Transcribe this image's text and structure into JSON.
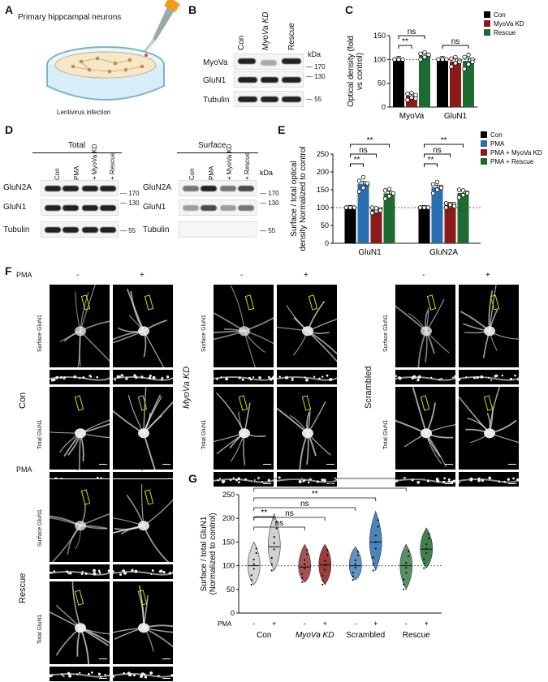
{
  "panels": {
    "A": {
      "letter": "A",
      "title": "Primary  hippcampal neurons",
      "caption": "Lentivirus infection"
    },
    "B": {
      "letter": "B",
      "lanes": [
        "Con",
        "MyoVa KD",
        "Rescue"
      ],
      "kda_label": "kDa",
      "rows": [
        {
          "label": "MyoVa",
          "marker": "170"
        },
        {
          "label": "GluN1",
          "marker": "130"
        },
        {
          "label": "Tubulin",
          "marker": "55"
        }
      ]
    },
    "C": {
      "letter": "C"
    },
    "D": {
      "letter": "D",
      "total_title": "Total",
      "surface_title": "Surface",
      "lanes": [
        "Con",
        "PMA",
        "+ MyoVa KD",
        "+ Rescue"
      ],
      "kda_label": "kDa",
      "rows": [
        {
          "label": "GluN2A",
          "marker": "170"
        },
        {
          "label": "GluN1",
          "marker": "130"
        },
        {
          "label": "Tubulin",
          "marker": "55"
        }
      ]
    },
    "E": {
      "letter": "E"
    },
    "F": {
      "letter": "F",
      "pma_label": "PMA",
      "minus": "-",
      "plus": "+",
      "surface_label": "Surface GluN1",
      "total_label": "Total GluN1",
      "groups": [
        "Con",
        "MyoVa KD",
        "Scrambled",
        "Rescue"
      ]
    },
    "G": {
      "letter": "G"
    }
  },
  "chart_data": [
    {
      "panel": "C",
      "type": "bar",
      "categories": [
        "MyoVa",
        "GluN1"
      ],
      "ylabel": "Optical density (fold vs control)",
      "ylim": [
        0,
        150
      ],
      "yticks": [
        0,
        50,
        100,
        150
      ],
      "reference_line": 100,
      "series": [
        {
          "name": "Con",
          "color": "#000000",
          "values": [
            100,
            100
          ],
          "points": [
            [
              100,
              100,
              100,
              100,
              100,
              100
            ],
            [
              100,
              100,
              100,
              100,
              100,
              100
            ]
          ]
        },
        {
          "name": "MyoVa KD",
          "color": "#8b1a1a",
          "values": [
            24,
            96
          ],
          "points": [
            [
              15,
              20,
              25,
              28,
              30,
              18
            ],
            [
              85,
              92,
              98,
              102,
              105,
              95
            ]
          ]
        },
        {
          "name": "Rescue",
          "color": "#1e6b32",
          "values": [
            108,
            97
          ],
          "points": [
            [
              100,
              105,
              108,
              112,
              115,
              110
            ],
            [
              80,
              90,
              100,
              105,
              110,
              95
            ]
          ]
        }
      ],
      "significance": [
        {
          "label": "ns",
          "from": [
            "MyoVa",
            "Con"
          ],
          "to": [
            "MyoVa",
            "Rescue"
          ]
        },
        {
          "label": "**",
          "from": [
            "MyoVa",
            "Con"
          ],
          "to": [
            "MyoVa",
            "MyoVa KD"
          ]
        },
        {
          "label": "ns",
          "from": [
            "GluN1",
            "Con"
          ],
          "to": [
            "GluN1",
            "Rescue"
          ]
        }
      ]
    },
    {
      "panel": "E",
      "type": "bar",
      "categories": [
        "GluN1",
        "GluN2A"
      ],
      "ylabel": "Surface / total optical density Normalized to control",
      "ylim": [
        0,
        250
      ],
      "yticks": [
        0,
        50,
        100,
        150,
        200,
        250
      ],
      "reference_line": 100,
      "series": [
        {
          "name": "Con",
          "color": "#000000",
          "values": [
            100,
            100
          ],
          "points": [
            [
              100,
              100,
              100,
              100,
              100,
              100
            ],
            [
              100,
              100,
              100,
              100,
              100,
              100
            ]
          ]
        },
        {
          "name": "PMA",
          "color": "#2a6fb0",
          "values": [
            167,
            157
          ],
          "points": [
            [
              145,
              155,
              165,
              175,
              185,
              168
            ],
            [
              140,
              150,
              158,
              165,
              172,
              155
            ]
          ]
        },
        {
          "name": "PMA + MyoVa KD",
          "color": "#8b1a1a",
          "values": [
            94,
            108
          ],
          "points": [
            [
              85,
              90,
              95,
              100,
              98,
              92
            ],
            [
              100,
              105,
              110,
              112,
              108,
              104
            ]
          ]
        },
        {
          "name": "PMA + Rescue",
          "color": "#1e6b32",
          "values": [
            140,
            141
          ],
          "points": [
            [
              125,
              132,
              140,
              148,
              152,
              140
            ],
            [
              128,
              135,
              142,
              150,
              148,
              140
            ]
          ]
        }
      ],
      "significance": [
        {
          "label": "**",
          "from": [
            "GluN1",
            "Con"
          ],
          "to": [
            "GluN1",
            "PMA + Rescue"
          ]
        },
        {
          "label": "ns",
          "from": [
            "GluN1",
            "Con"
          ],
          "to": [
            "GluN1",
            "PMA + MyoVa KD"
          ]
        },
        {
          "label": "**",
          "from": [
            "GluN1",
            "Con"
          ],
          "to": [
            "GluN1",
            "PMA"
          ]
        },
        {
          "label": "**",
          "from": [
            "GluN2A",
            "Con"
          ],
          "to": [
            "GluN2A",
            "PMA + Rescue"
          ]
        },
        {
          "label": "ns",
          "from": [
            "GluN2A",
            "Con"
          ],
          "to": [
            "GluN2A",
            "PMA + MyoVa KD"
          ]
        },
        {
          "label": "**",
          "from": [
            "GluN2A",
            "Con"
          ],
          "to": [
            "GluN2A",
            "PMA"
          ]
        }
      ]
    },
    {
      "panel": "G",
      "type": "violin",
      "ylabel": "Surface / total GluN1 (Normalized to control)",
      "xlabel_pma": "PMA",
      "ylim": [
        0,
        250
      ],
      "yticks": [
        0,
        50,
        100,
        150,
        200,
        250
      ],
      "reference_line": 100,
      "groups": [
        {
          "name": "Con",
          "color": "#c8c8c8",
          "minus": {
            "median": 100,
            "min": 60,
            "max": 150
          },
          "plus": {
            "median": 140,
            "min": 90,
            "max": 210
          }
        },
        {
          "name": "MyoVa KD",
          "color": "#8b1a1a",
          "minus": {
            "median": 97,
            "min": 65,
            "max": 145
          },
          "plus": {
            "median": 102,
            "min": 60,
            "max": 145
          }
        },
        {
          "name": "Scrambled",
          "color": "#2a6fb0",
          "minus": {
            "median": 100,
            "min": 70,
            "max": 140
          },
          "plus": {
            "median": 150,
            "min": 90,
            "max": 215
          }
        },
        {
          "name": "Rescue",
          "color": "#1e6b32",
          "minus": {
            "median": 100,
            "min": 50,
            "max": 145
          },
          "plus": {
            "median": 135,
            "min": 95,
            "max": 180
          }
        }
      ],
      "significance": [
        {
          "label": "**",
          "from": "Con -",
          "to": "Rescue +"
        },
        {
          "label": "ns",
          "from": "Con -",
          "to": "Rescue -"
        },
        {
          "label": "**",
          "from": "Con -",
          "to": "Scrambled +"
        },
        {
          "label": "ns",
          "from": "Con -",
          "to": "Scrambled -"
        },
        {
          "label": "ns",
          "from": "Con -",
          "to": "MyoVa KD +"
        },
        {
          "label": "ns",
          "from": "Con -",
          "to": "MyoVa KD -"
        },
        {
          "label": "**",
          "from": "Con -",
          "to": "Con +"
        }
      ]
    }
  ]
}
